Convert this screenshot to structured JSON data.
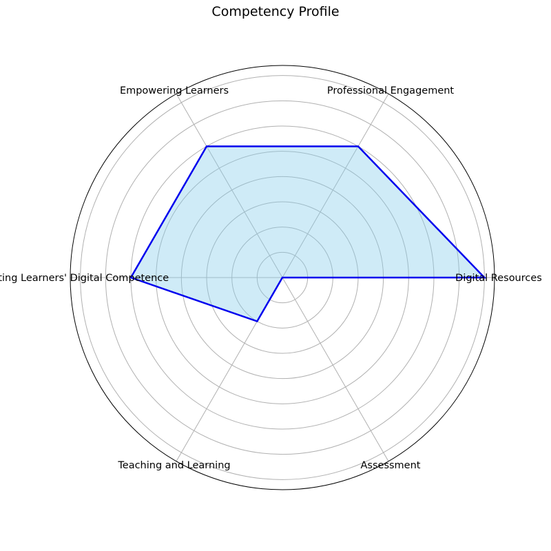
{
  "chart_data": {
    "type": "radar",
    "title": "Competency Profile",
    "categories": [
      "Digital Resources",
      "Professional Engagement",
      "Empowering Learners",
      "Facilitating Learners' Digital Competence",
      "Teaching and Learning",
      "Assessment"
    ],
    "series": [
      {
        "values": [
          4,
          3,
          3,
          3,
          1,
          0
        ]
      }
    ],
    "rlim": [
      0,
      4.2
    ],
    "rgrid": [
      0.5,
      1,
      1.5,
      2,
      2.5,
      3,
      3.5,
      4
    ],
    "grid": true,
    "colors": {
      "line": "#0000ee",
      "fill": "#87ceeb",
      "grid": "#b0b0b0",
      "frame": "#000000"
    }
  }
}
